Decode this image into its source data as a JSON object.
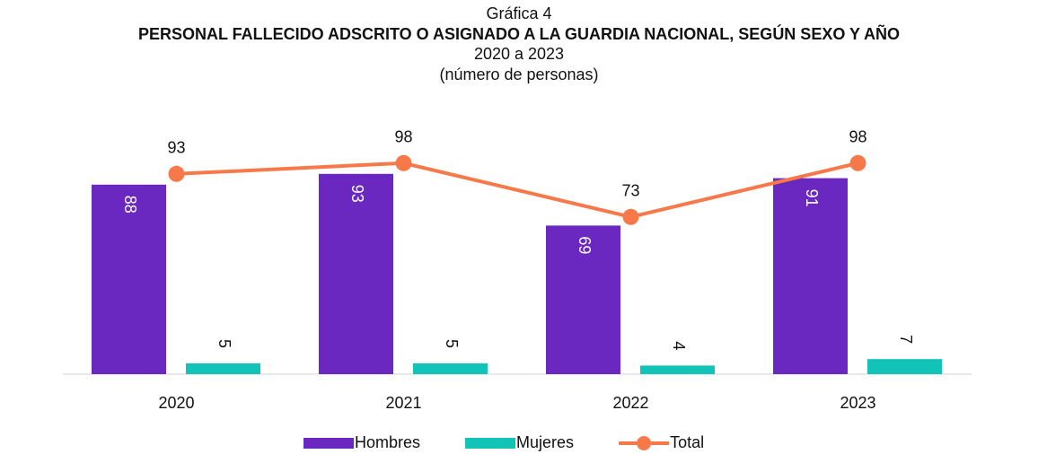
{
  "chart_data": {
    "type": "bar",
    "title": "Gráfica 4",
    "subtitle": "PERSONAL FALLECIDO ADSCRITO O ASIGNADO A LA GUARDIA NACIONAL, SEGÚN SEXO Y AÑO",
    "period": "2020 a 2023",
    "unit": "(número de personas)",
    "categories": [
      "2020",
      "2021",
      "2022",
      "2023"
    ],
    "series": [
      {
        "name": "Hombres",
        "color": "#6a28c0",
        "type": "bar",
        "values": [
          88,
          93,
          69,
          91
        ]
      },
      {
        "name": "Mujeres",
        "color": "#12c4b8",
        "type": "bar",
        "values": [
          5,
          5,
          4,
          7
        ]
      },
      {
        "name": "Total",
        "color": "#f7794a",
        "type": "line",
        "values": [
          93,
          98,
          73,
          98
        ]
      }
    ],
    "legend": "bottom"
  }
}
